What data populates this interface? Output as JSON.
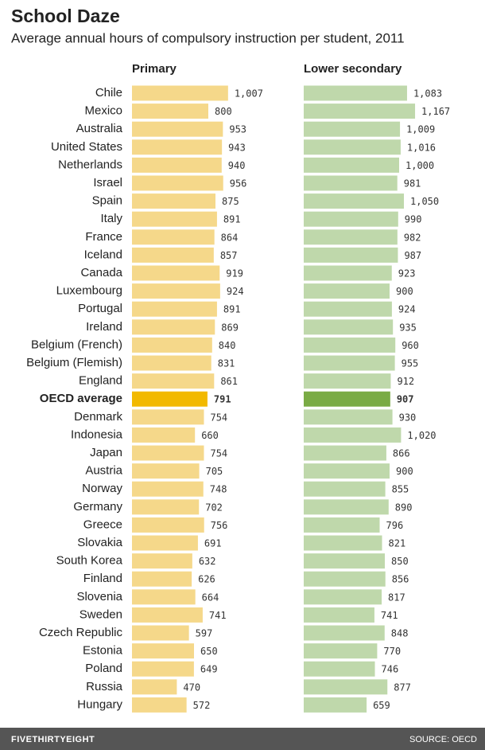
{
  "chart_data": {
    "type": "bar",
    "orientation": "horizontal",
    "title": "School Daze",
    "subtitle": "Average annual hours of compulsory instruction per student, 2011",
    "categories": [
      "Chile",
      "Mexico",
      "Australia",
      "United States",
      "Netherlands",
      "Israel",
      "Spain",
      "Italy",
      "France",
      "Iceland",
      "Canada",
      "Luxembourg",
      "Portugal",
      "Ireland",
      "Belgium (French)",
      "Belgium (Flemish)",
      "England",
      "OECD average",
      "Denmark",
      "Indonesia",
      "Japan",
      "Austria",
      "Norway",
      "Germany",
      "Greece",
      "Slovakia",
      "South Korea",
      "Finland",
      "Slovenia",
      "Sweden",
      "Czech Republic",
      "Estonia",
      "Poland",
      "Russia",
      "Hungary"
    ],
    "highlight": "OECD average",
    "series": [
      {
        "name": "Primary",
        "color": "#f5d88a",
        "highlight_color": "#f2b900",
        "values": [
          1007,
          800,
          953,
          943,
          940,
          956,
          875,
          891,
          864,
          857,
          919,
          924,
          891,
          869,
          840,
          831,
          861,
          791,
          754,
          660,
          754,
          705,
          748,
          702,
          756,
          691,
          632,
          626,
          664,
          741,
          597,
          650,
          649,
          470,
          572
        ],
        "value_labels": [
          "1,007",
          "800",
          "953",
          "943",
          "940",
          "956",
          "875",
          "891",
          "864",
          "857",
          "919",
          "924",
          "891",
          "869",
          "840",
          "831",
          "861",
          "791",
          "754",
          "660",
          "754",
          "705",
          "748",
          "702",
          "756",
          "691",
          "632",
          "626",
          "664",
          "741",
          "597",
          "650",
          "649",
          "470",
          "572"
        ]
      },
      {
        "name": "Lower secondary",
        "color": "#bfd8ab",
        "highlight_color": "#7aab45",
        "values": [
          1083,
          1167,
          1009,
          1016,
          1000,
          981,
          1050,
          990,
          982,
          987,
          923,
          900,
          924,
          935,
          960,
          955,
          912,
          907,
          930,
          1020,
          866,
          900,
          855,
          890,
          796,
          821,
          850,
          856,
          817,
          741,
          848,
          770,
          746,
          877,
          659
        ],
        "value_labels": [
          "1,083",
          "1,167",
          "1,009",
          "1,016",
          "1,000",
          "981",
          "1,050",
          "990",
          "982",
          "987",
          "923",
          "900",
          "924",
          "935",
          "960",
          "955",
          "912",
          "907",
          "930",
          "1,020",
          "866",
          "900",
          "855",
          "890",
          "796",
          "821",
          "850",
          "856",
          "817",
          "741",
          "848",
          "770",
          "746",
          "877",
          "659"
        ]
      }
    ],
    "brand": "FIVETHIRTYEIGHT",
    "source": "SOURCE: OECD"
  }
}
